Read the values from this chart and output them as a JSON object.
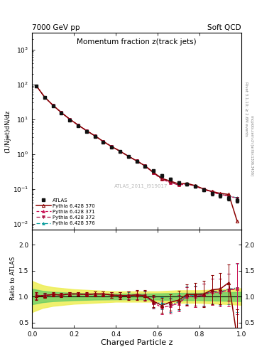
{
  "title_main": "Momentum fraction z(track jets)",
  "header_left": "7000 GeV pp",
  "header_right": "Soft QCD",
  "ylabel_main": "(1/Njet)dN/dz",
  "ylabel_ratio": "Ratio to ATLAS",
  "xlabel": "Charged Particle z",
  "right_label1": "Rivet 3.1.10; ≥ 2.6M events",
  "right_label2": "mcplots.cern.ch [arXiv:1306.3436]",
  "watermark": "ATLAS_2011_I919017",
  "xlim": [
    0,
    1.0
  ],
  "ylim_main": [
    0.007,
    3000
  ],
  "ylim_ratio": [
    0.4,
    2.3
  ],
  "z_values": [
    0.02,
    0.06,
    0.1,
    0.14,
    0.18,
    0.22,
    0.26,
    0.3,
    0.34,
    0.38,
    0.42,
    0.46,
    0.5,
    0.54,
    0.58,
    0.62,
    0.66,
    0.7,
    0.74,
    0.78,
    0.82,
    0.86,
    0.9,
    0.94,
    0.98
  ],
  "atlas_y": [
    90,
    42,
    24,
    15,
    9.5,
    6.5,
    4.5,
    3.2,
    2.2,
    1.6,
    1.2,
    0.85,
    0.62,
    0.45,
    0.33,
    0.24,
    0.19,
    0.15,
    0.14,
    0.12,
    0.095,
    0.075,
    0.065,
    0.055,
    0.048
  ],
  "atlas_yerr": [
    5,
    2,
    1.2,
    0.8,
    0.5,
    0.35,
    0.25,
    0.18,
    0.13,
    0.09,
    0.07,
    0.05,
    0.04,
    0.03,
    0.025,
    0.02,
    0.016,
    0.014,
    0.013,
    0.012,
    0.01,
    0.009,
    0.008,
    0.008,
    0.008
  ],
  "py370_y": [
    91,
    43,
    25,
    15.5,
    10,
    6.8,
    4.7,
    3.35,
    2.3,
    1.65,
    1.22,
    0.87,
    0.64,
    0.46,
    0.3,
    0.2,
    0.17,
    0.14,
    0.145,
    0.125,
    0.1,
    0.085,
    0.075,
    0.07,
    0.012
  ],
  "py371_y": [
    91,
    43,
    25,
    15.5,
    10,
    6.8,
    4.7,
    3.35,
    2.3,
    1.65,
    1.22,
    0.87,
    0.64,
    0.46,
    0.29,
    0.19,
    0.155,
    0.13,
    0.14,
    0.12,
    0.098,
    0.082,
    0.07,
    0.062,
    0.055
  ],
  "py372_y": [
    91,
    43,
    25,
    15.5,
    10,
    6.8,
    4.7,
    3.35,
    2.3,
    1.65,
    1.22,
    0.87,
    0.64,
    0.46,
    0.29,
    0.19,
    0.155,
    0.13,
    0.14,
    0.12,
    0.098,
    0.082,
    0.07,
    0.062,
    0.055
  ],
  "py376_y": [
    91,
    43,
    25,
    15.5,
    10,
    6.8,
    4.7,
    3.35,
    2.3,
    1.65,
    1.22,
    0.87,
    0.64,
    0.46,
    0.29,
    0.21,
    0.16,
    0.135,
    0.143,
    0.122,
    0.099,
    0.083,
    0.071,
    0.063,
    0.056
  ],
  "ratio370_y": [
    1.01,
    1.02,
    1.04,
    1.03,
    1.05,
    1.05,
    1.04,
    1.05,
    1.05,
    1.03,
    1.02,
    1.02,
    1.03,
    1.02,
    0.91,
    0.83,
    0.89,
    0.93,
    1.04,
    1.04,
    1.05,
    1.13,
    1.15,
    1.27,
    0.21
  ],
  "ratio371_y": [
    1.01,
    1.02,
    1.04,
    1.03,
    1.05,
    1.05,
    1.04,
    1.05,
    1.05,
    1.03,
    1.02,
    1.02,
    1.03,
    1.02,
    0.88,
    0.79,
    0.82,
    0.87,
    1.0,
    1.0,
    1.03,
    1.09,
    1.08,
    1.13,
    1.15
  ],
  "ratio372_y": [
    1.01,
    1.02,
    1.04,
    1.03,
    1.05,
    1.05,
    1.04,
    1.05,
    1.05,
    1.03,
    1.02,
    1.02,
    1.03,
    1.02,
    0.88,
    0.79,
    0.82,
    0.87,
    1.0,
    1.0,
    1.03,
    1.09,
    1.08,
    1.13,
    1.15
  ],
  "ratio376_y": [
    1.01,
    1.02,
    1.04,
    1.03,
    1.05,
    1.05,
    1.04,
    1.05,
    1.05,
    1.03,
    1.02,
    1.02,
    1.03,
    1.02,
    0.88,
    0.875,
    0.842,
    0.9,
    1.021,
    1.017,
    1.042,
    1.107,
    1.092,
    1.145,
    1.167
  ],
  "ratio_err": [
    0.07,
    0.05,
    0.04,
    0.04,
    0.04,
    0.04,
    0.04,
    0.05,
    0.05,
    0.06,
    0.07,
    0.08,
    0.09,
    0.1,
    0.12,
    0.14,
    0.16,
    0.18,
    0.2,
    0.22,
    0.25,
    0.28,
    0.3,
    0.35,
    0.55
  ],
  "color_370": "#8B0000",
  "color_371": "#CC1155",
  "color_372": "#AA1144",
  "color_376": "#009999",
  "color_atlas": "#111111",
  "band_green": "#66CC66",
  "band_yellow": "#EEEE55",
  "z_band": [
    0.0,
    0.05,
    0.1,
    0.2,
    0.3,
    0.4,
    0.5,
    0.6,
    0.7,
    0.8,
    0.9,
    1.0
  ],
  "band_yellow_up": [
    1.3,
    1.22,
    1.18,
    1.14,
    1.12,
    1.1,
    1.1,
    1.1,
    1.12,
    1.12,
    1.14,
    1.16
  ],
  "band_yellow_dn": [
    0.7,
    0.78,
    0.82,
    0.86,
    0.88,
    0.9,
    0.9,
    0.9,
    0.88,
    0.88,
    0.86,
    0.84
  ],
  "band_green_up": [
    1.15,
    1.11,
    1.09,
    1.07,
    1.06,
    1.055,
    1.055,
    1.06,
    1.07,
    1.07,
    1.08,
    1.09
  ],
  "band_green_dn": [
    0.85,
    0.89,
    0.91,
    0.93,
    0.94,
    0.945,
    0.945,
    0.94,
    0.93,
    0.93,
    0.92,
    0.91
  ],
  "figsize": [
    3.93,
    5.12
  ],
  "dpi": 100
}
